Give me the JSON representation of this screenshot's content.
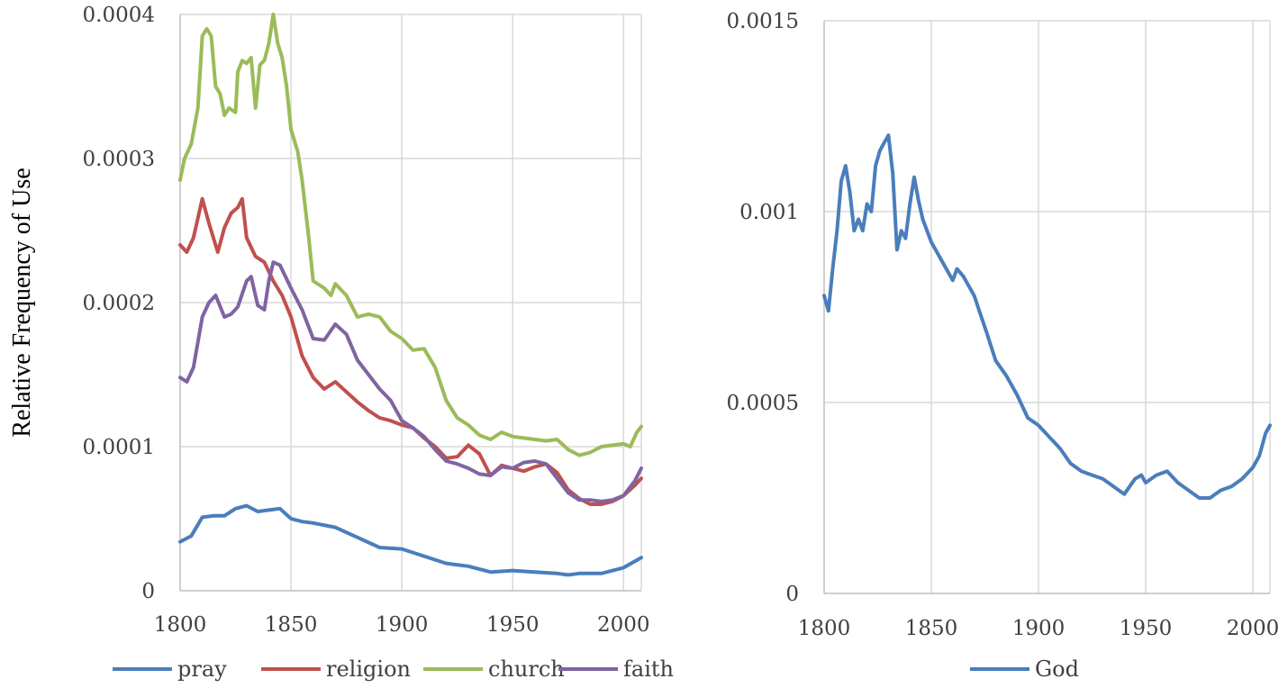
{
  "chart_data": [
    {
      "type": "line",
      "ylabel": "Relative Frequency of Use",
      "xlim": [
        1800,
        2008
      ],
      "ylim": [
        0,
        0.0004
      ],
      "x_ticks": [
        "1800",
        "1850",
        "1900",
        "1950",
        "2000"
      ],
      "y_ticks": [
        "0",
        "0.0001",
        "0.0002",
        "0.0003",
        "0.0004"
      ],
      "grid": true,
      "legend_position": "bottom",
      "series": [
        {
          "name": "pray",
          "color": "#4a7ebb",
          "x": [
            1800,
            1805,
            1810,
            1815,
            1820,
            1825,
            1830,
            1835,
            1840,
            1845,
            1850,
            1855,
            1860,
            1870,
            1880,
            1890,
            1900,
            1910,
            1920,
            1930,
            1940,
            1950,
            1960,
            1970,
            1975,
            1980,
            1990,
            2000,
            2008
          ],
          "y": [
            3.4e-05,
            3.8e-05,
            5.1e-05,
            5.2e-05,
            5.2e-05,
            5.7e-05,
            5.9e-05,
            5.5e-05,
            5.6e-05,
            5.7e-05,
            5e-05,
            4.8e-05,
            4.7e-05,
            4.4e-05,
            3.7e-05,
            3e-05,
            2.9e-05,
            2.4e-05,
            1.9e-05,
            1.7e-05,
            1.3e-05,
            1.4e-05,
            1.3e-05,
            1.2e-05,
            1.1e-05,
            1.2e-05,
            1.2e-05,
            1.6e-05,
            2.3e-05
          ]
        },
        {
          "name": "religion",
          "color": "#c0504d",
          "x": [
            1800,
            1803,
            1806,
            1810,
            1813,
            1817,
            1820,
            1823,
            1826,
            1828,
            1830,
            1834,
            1838,
            1842,
            1846,
            1850,
            1855,
            1860,
            1865,
            1870,
            1875,
            1880,
            1885,
            1890,
            1895,
            1900,
            1905,
            1910,
            1915,
            1920,
            1925,
            1930,
            1935,
            1940,
            1945,
            1950,
            1955,
            1960,
            1965,
            1970,
            1975,
            1980,
            1985,
            1990,
            1995,
            2000,
            2005,
            2008
          ],
          "y": [
            0.00024,
            0.000235,
            0.000245,
            0.000272,
            0.000255,
            0.000235,
            0.000252,
            0.000262,
            0.000266,
            0.000272,
            0.000245,
            0.000232,
            0.000228,
            0.000215,
            0.000205,
            0.00019,
            0.000163,
            0.000148,
            0.00014,
            0.000145,
            0.000138,
            0.000131,
            0.000125,
            0.00012,
            0.000118,
            0.000115,
            0.000113,
            0.000106,
            0.0001,
            9.2e-05,
            9.3e-05,
            0.000101,
            9.5e-05,
            8e-05,
            8.7e-05,
            8.5e-05,
            8.3e-05,
            8.6e-05,
            8.8e-05,
            8.2e-05,
            7e-05,
            6.4e-05,
            6e-05,
            6e-05,
            6.2e-05,
            6.6e-05,
            7.3e-05,
            7.8e-05
          ]
        },
        {
          "name": "church",
          "color": "#9bbb59",
          "x": [
            1800,
            1802,
            1805,
            1808,
            1810,
            1812,
            1814,
            1816,
            1818,
            1820,
            1822,
            1825,
            1826,
            1828,
            1830,
            1832,
            1834,
            1836,
            1838,
            1840,
            1842,
            1844,
            1846,
            1848,
            1850,
            1853,
            1855,
            1858,
            1860,
            1865,
            1868,
            1870,
            1875,
            1880,
            1885,
            1890,
            1895,
            1900,
            1905,
            1910,
            1915,
            1920,
            1925,
            1930,
            1935,
            1940,
            1945,
            1950,
            1955,
            1960,
            1965,
            1970,
            1975,
            1980,
            1985,
            1990,
            1995,
            2000,
            2003,
            2006,
            2008
          ],
          "y": [
            0.000285,
            0.0003,
            0.00031,
            0.000335,
            0.000385,
            0.00039,
            0.000385,
            0.00035,
            0.000345,
            0.00033,
            0.000335,
            0.000332,
            0.00036,
            0.000368,
            0.000366,
            0.00037,
            0.000335,
            0.000365,
            0.000368,
            0.00038,
            0.0004,
            0.00038,
            0.00037,
            0.00035,
            0.00032,
            0.000305,
            0.000285,
            0.000245,
            0.000215,
            0.00021,
            0.000205,
            0.000213,
            0.000205,
            0.00019,
            0.000192,
            0.00019,
            0.00018,
            0.000175,
            0.000167,
            0.000168,
            0.000155,
            0.000132,
            0.00012,
            0.000115,
            0.000108,
            0.000105,
            0.00011,
            0.000107,
            0.000106,
            0.000105,
            0.000104,
            0.000105,
            9.8e-05,
            9.4e-05,
            9.6e-05,
            0.0001,
            0.000101,
            0.000102,
            0.0001,
            0.00011,
            0.000114
          ]
        },
        {
          "name": "faith",
          "color": "#8064a2",
          "x": [
            1800,
            1803,
            1806,
            1810,
            1813,
            1816,
            1820,
            1823,
            1826,
            1830,
            1832,
            1835,
            1838,
            1840,
            1842,
            1845,
            1850,
            1855,
            1860,
            1865,
            1870,
            1875,
            1880,
            1885,
            1890,
            1895,
            1900,
            1905,
            1910,
            1915,
            1920,
            1925,
            1930,
            1935,
            1940,
            1945,
            1950,
            1955,
            1960,
            1965,
            1970,
            1975,
            1980,
            1985,
            1990,
            1995,
            2000,
            2005,
            2008
          ],
          "y": [
            0.000148,
            0.000145,
            0.000155,
            0.00019,
            0.0002,
            0.000205,
            0.00019,
            0.000192,
            0.000197,
            0.000215,
            0.000218,
            0.000198,
            0.000195,
            0.000215,
            0.000228,
            0.000226,
            0.00021,
            0.000195,
            0.000175,
            0.000174,
            0.000185,
            0.000178,
            0.00016,
            0.00015,
            0.00014,
            0.000132,
            0.000118,
            0.000113,
            0.000107,
            9.8e-05,
            9e-05,
            8.8e-05,
            8.5e-05,
            8.1e-05,
            8e-05,
            8.6e-05,
            8.5e-05,
            8.9e-05,
            9e-05,
            8.8e-05,
            7.8e-05,
            6.8e-05,
            6.3e-05,
            6.3e-05,
            6.2e-05,
            6.3e-05,
            6.6e-05,
            7.6e-05,
            8.5e-05
          ]
        }
      ]
    },
    {
      "type": "line",
      "xlim": [
        1800,
        2008
      ],
      "ylim": [
        0,
        0.0015
      ],
      "x_ticks": [
        "1800",
        "1850",
        "1900",
        "1950",
        "2000"
      ],
      "y_ticks": [
        "0",
        "0.0005",
        "0.001",
        "0.0015"
      ],
      "grid": true,
      "legend_position": "bottom",
      "series": [
        {
          "name": "God",
          "color": "#4a7ebb",
          "x": [
            1800,
            1802,
            1804,
            1806,
            1808,
            1810,
            1812,
            1814,
            1816,
            1818,
            1820,
            1822,
            1824,
            1826,
            1828,
            1830,
            1832,
            1834,
            1836,
            1838,
            1840,
            1842,
            1844,
            1846,
            1850,
            1855,
            1860,
            1862,
            1865,
            1870,
            1873,
            1876,
            1880,
            1885,
            1890,
            1895,
            1900,
            1905,
            1910,
            1915,
            1920,
            1925,
            1930,
            1935,
            1940,
            1945,
            1948,
            1950,
            1955,
            1960,
            1965,
            1970,
            1975,
            1980,
            1985,
            1990,
            1995,
            2000,
            2003,
            2006,
            2008
          ],
          "y": [
            0.00078,
            0.00074,
            0.00085,
            0.00095,
            0.00108,
            0.00112,
            0.00105,
            0.00095,
            0.00098,
            0.00095,
            0.00102,
            0.001,
            0.00112,
            0.00116,
            0.00118,
            0.0012,
            0.0011,
            0.0009,
            0.00095,
            0.00093,
            0.00102,
            0.00109,
            0.00103,
            0.00098,
            0.00092,
            0.00087,
            0.00082,
            0.00085,
            0.00083,
            0.00078,
            0.00073,
            0.00068,
            0.00061,
            0.00057,
            0.00052,
            0.00046,
            0.00044,
            0.00041,
            0.00038,
            0.00034,
            0.00032,
            0.00031,
            0.0003,
            0.00028,
            0.00026,
            0.0003,
            0.00031,
            0.00029,
            0.00031,
            0.00032,
            0.00029,
            0.00027,
            0.00025,
            0.00025,
            0.00027,
            0.00028,
            0.0003,
            0.00033,
            0.00036,
            0.00042,
            0.00044
          ]
        }
      ]
    }
  ]
}
